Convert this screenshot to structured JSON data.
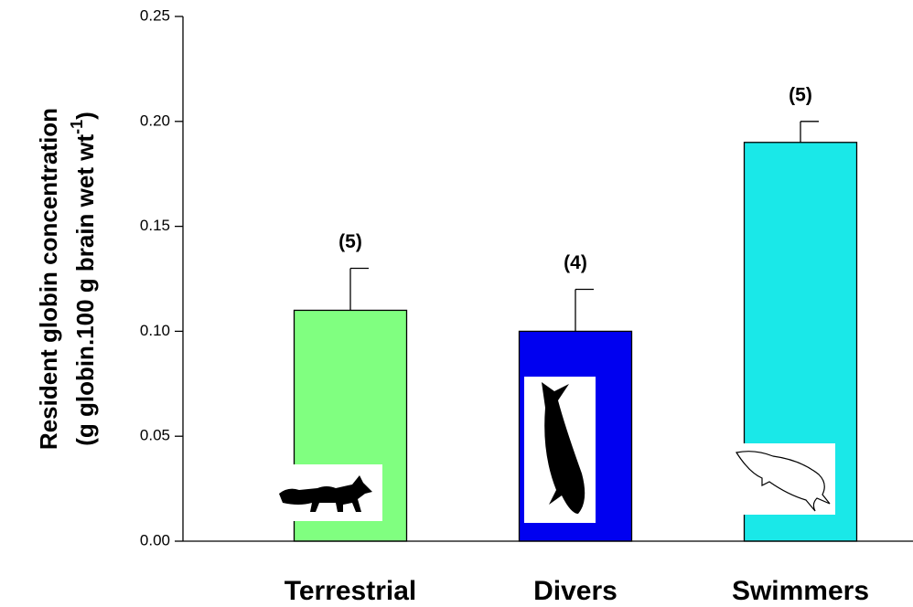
{
  "chart_data": {
    "type": "bar",
    "y_label": {
      "line1": "Resident globin concentration",
      "line2": "(g globin.100 g brain wet wt",
      "line2_superscript": "-1",
      "line2_end": ")"
    },
    "categories": [
      "Terrestrial",
      "Divers",
      "Swimmers"
    ],
    "values": [
      0.11,
      0.1,
      0.19
    ],
    "errors": [
      0.02,
      0.02,
      0.01
    ],
    "annotations": [
      "(5)",
      "(4)",
      "(5)"
    ],
    "colors": [
      "#80ff80",
      "#0000f0",
      "#1ae8e8"
    ],
    "ylim": [
      0,
      0.25
    ],
    "yticks": [
      {
        "value": 0,
        "label": "0.00"
      },
      {
        "value": 0.05,
        "label": "0.05"
      },
      {
        "value": 0.1,
        "label": "0.10"
      },
      {
        "value": 0.15,
        "label": "0.15"
      },
      {
        "value": 0.2,
        "label": "0.20"
      },
      {
        "value": 0.25,
        "label": "0.25"
      }
    ]
  }
}
